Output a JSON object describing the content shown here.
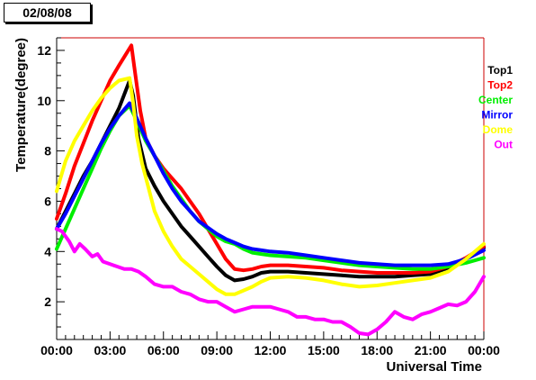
{
  "header": {
    "date": "02/08/08"
  },
  "chart_data": {
    "type": "line",
    "title": "",
    "xlabel": "Universal Time",
    "ylabel": "Temperature(degree)",
    "xlim": [
      0,
      24
    ],
    "ylim": [
      0.5,
      12.5
    ],
    "x_ticks": [
      {
        "value": 0,
        "label": "00:00"
      },
      {
        "value": 3,
        "label": "03:00"
      },
      {
        "value": 6,
        "label": "06:00"
      },
      {
        "value": 9,
        "label": "09:00"
      },
      {
        "value": 12,
        "label": "12:00"
      },
      {
        "value": 15,
        "label": "15:00"
      },
      {
        "value": 18,
        "label": "18:00"
      },
      {
        "value": 21,
        "label": "21:00"
      },
      {
        "value": 24,
        "label": "00:00"
      }
    ],
    "y_ticks": [
      {
        "value": 2,
        "label": "2"
      },
      {
        "value": 4,
        "label": "4"
      },
      {
        "value": 6,
        "label": "6"
      },
      {
        "value": 8,
        "label": "8"
      },
      {
        "value": 10,
        "label": "10"
      },
      {
        "value": 12,
        "label": "12"
      }
    ],
    "grid": false,
    "legend_position": "right",
    "series": [
      {
        "name": "Top1",
        "color": "#000000",
        "x": [
          0,
          0.5,
          1,
          1.5,
          2,
          2.5,
          3,
          3.5,
          4.1,
          4.3,
          4.6,
          5,
          5.5,
          6,
          6.5,
          7,
          7.5,
          8,
          8.5,
          9,
          9.5,
          10,
          10.5,
          11,
          11.5,
          12,
          13,
          14,
          15,
          16,
          17,
          18,
          19,
          20,
          21,
          22,
          23,
          24
        ],
        "y": [
          4.9,
          5.6,
          6.3,
          7.0,
          7.6,
          8.3,
          9.0,
          9.7,
          10.8,
          10.2,
          8.5,
          7.3,
          6.6,
          6.0,
          5.5,
          5.0,
          4.6,
          4.2,
          3.8,
          3.4,
          3.05,
          2.85,
          2.9,
          3.0,
          3.15,
          3.2,
          3.2,
          3.15,
          3.1,
          3.05,
          3.0,
          3.0,
          3.0,
          3.05,
          3.1,
          3.35,
          3.7,
          4.15
        ]
      },
      {
        "name": "Top2",
        "color": "#ff0000",
        "x": [
          0,
          0.5,
          1,
          1.5,
          2,
          2.5,
          3,
          3.5,
          4.2,
          4.35,
          4.7,
          5,
          5.5,
          6,
          6.5,
          7,
          7.5,
          8,
          8.5,
          9,
          9.5,
          10,
          10.5,
          11,
          11.5,
          12,
          13,
          14,
          15,
          16,
          17,
          18,
          19,
          20,
          21,
          22,
          23,
          24
        ],
        "y": [
          5.3,
          6.3,
          7.4,
          8.3,
          9.2,
          10.0,
          10.8,
          11.4,
          12.2,
          11.4,
          9.6,
          8.5,
          7.8,
          7.3,
          6.9,
          6.5,
          6.0,
          5.5,
          4.9,
          4.3,
          3.7,
          3.3,
          3.25,
          3.3,
          3.4,
          3.45,
          3.45,
          3.4,
          3.35,
          3.25,
          3.2,
          3.15,
          3.15,
          3.15,
          3.2,
          3.4,
          3.75,
          4.2
        ]
      },
      {
        "name": "Center",
        "color": "#00ee00",
        "x": [
          0,
          0.5,
          1,
          1.5,
          2,
          2.5,
          3,
          3.5,
          4.1,
          4.5,
          5,
          5.5,
          6,
          6.5,
          7,
          7.5,
          8,
          8.5,
          9,
          9.5,
          10,
          10.5,
          11,
          11.5,
          12,
          13,
          14,
          15,
          16,
          17,
          18,
          19,
          20,
          21,
          22,
          23,
          24
        ],
        "y": [
          4.1,
          4.9,
          5.7,
          6.5,
          7.3,
          8.1,
          8.8,
          9.4,
          9.8,
          9.2,
          8.4,
          7.8,
          7.2,
          6.6,
          6.1,
          5.6,
          5.2,
          4.9,
          4.6,
          4.4,
          4.3,
          4.1,
          3.95,
          3.9,
          3.85,
          3.8,
          3.75,
          3.65,
          3.55,
          3.45,
          3.4,
          3.35,
          3.3,
          3.3,
          3.4,
          3.55,
          3.75
        ]
      },
      {
        "name": "Mirror",
        "color": "#0000ff",
        "x": [
          0,
          0.5,
          1,
          1.5,
          2,
          2.5,
          3,
          3.5,
          4.1,
          4.5,
          5,
          5.5,
          6,
          6.5,
          7,
          7.5,
          8,
          8.5,
          9,
          9.5,
          10,
          10.5,
          11,
          11.5,
          12,
          13,
          14,
          15,
          16,
          17,
          18,
          19,
          20,
          21,
          22,
          23,
          24
        ],
        "y": [
          4.9,
          5.5,
          6.2,
          6.9,
          7.6,
          8.3,
          8.9,
          9.4,
          9.9,
          9.3,
          8.5,
          7.8,
          7.1,
          6.5,
          6.0,
          5.6,
          5.2,
          4.95,
          4.7,
          4.5,
          4.35,
          4.2,
          4.1,
          4.05,
          4.0,
          3.95,
          3.85,
          3.75,
          3.65,
          3.55,
          3.5,
          3.45,
          3.45,
          3.45,
          3.5,
          3.7,
          4.05
        ]
      },
      {
        "name": "Dome",
        "color": "#ffff00",
        "x": [
          0,
          0.5,
          1,
          1.5,
          2,
          2.5,
          3,
          3.5,
          4.1,
          4.3,
          4.5,
          4.8,
          5.1,
          5.5,
          6,
          6.5,
          7,
          7.5,
          8,
          8.5,
          9,
          9.5,
          10,
          10.5,
          11,
          11.5,
          12,
          13,
          14,
          15,
          16,
          17,
          18,
          19,
          20,
          21,
          22,
          23,
          24
        ],
        "y": [
          6.4,
          7.6,
          8.4,
          9.0,
          9.6,
          10.1,
          10.5,
          10.8,
          10.9,
          9.9,
          8.6,
          7.5,
          6.7,
          5.6,
          4.8,
          4.2,
          3.7,
          3.4,
          3.1,
          2.8,
          2.5,
          2.3,
          2.3,
          2.45,
          2.6,
          2.8,
          2.95,
          3.0,
          2.95,
          2.85,
          2.7,
          2.6,
          2.65,
          2.75,
          2.85,
          2.95,
          3.2,
          3.7,
          4.3
        ]
      },
      {
        "name": "Out",
        "color": "#ff00ff",
        "x": [
          0,
          0.3,
          0.7,
          1,
          1.3,
          1.6,
          2,
          2.3,
          2.6,
          3,
          3.4,
          3.8,
          4.2,
          4.6,
          5,
          5.5,
          6,
          6.5,
          7,
          7.5,
          8,
          8.5,
          9,
          9.5,
          10,
          10.5,
          11,
          11.5,
          12,
          12.5,
          13,
          13.5,
          14,
          14.5,
          15,
          15.5,
          16,
          16.5,
          17,
          17.5,
          18,
          18.5,
          19,
          19.5,
          20,
          20.5,
          21,
          21.5,
          22,
          22.5,
          23,
          23.5,
          24
        ],
        "y": [
          4.9,
          4.8,
          4.4,
          4.0,
          4.3,
          4.1,
          3.8,
          3.9,
          3.6,
          3.5,
          3.4,
          3.3,
          3.3,
          3.2,
          3.0,
          2.7,
          2.6,
          2.6,
          2.4,
          2.3,
          2.1,
          2.0,
          2.0,
          1.8,
          1.6,
          1.7,
          1.8,
          1.8,
          1.8,
          1.7,
          1.6,
          1.4,
          1.4,
          1.3,
          1.3,
          1.2,
          1.2,
          1.0,
          0.75,
          0.7,
          0.9,
          1.2,
          1.6,
          1.4,
          1.3,
          1.5,
          1.6,
          1.75,
          1.9,
          1.85,
          2.0,
          2.4,
          3.0
        ]
      }
    ]
  }
}
